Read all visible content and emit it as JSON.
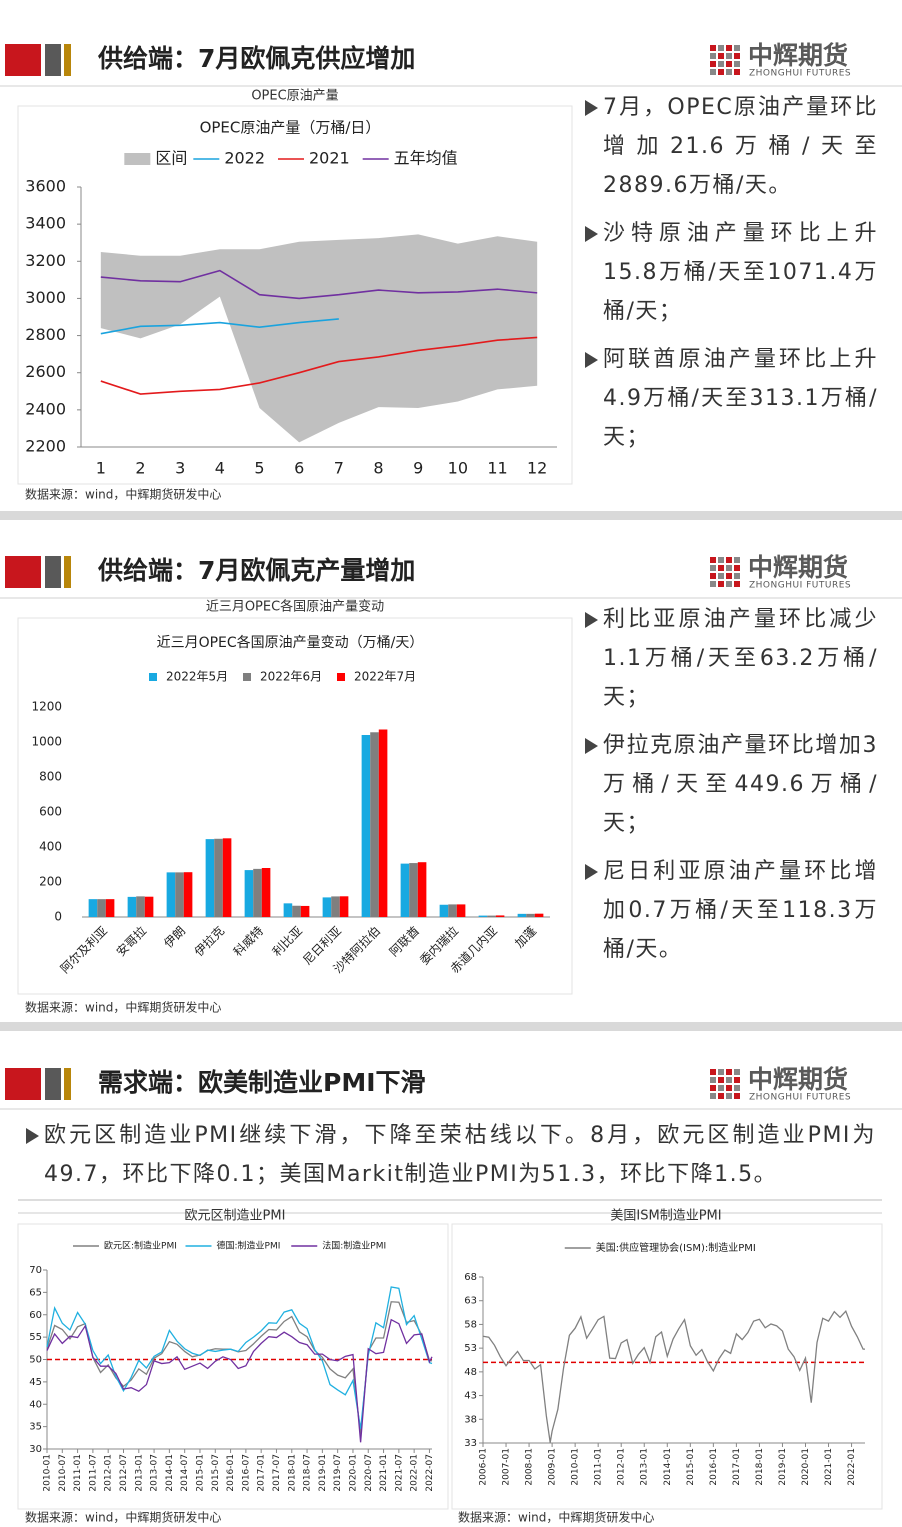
{
  "logo": {
    "name": "中辉期货",
    "name_en": "ZHONGHUI FUTURES"
  },
  "slides": [
    {
      "title": "供给端：7月欧佩克供应增加",
      "bullets": [
        "7月，OPEC原油产量环比增加21.6万桶/天至2889.6万桶/天。",
        "沙特原油产量环比上升15.8万桶/天至1071.4万桶/天；",
        "阿联酋原油产量环比上升4.9万桶/天至313.1万桶/天；"
      ]
    },
    {
      "title": "供给端：7月欧佩克产量增加",
      "bullets": [
        "利比亚原油产量环比减少1.1万桶/天至63.2万桶/天；",
        "伊拉克原油产量环比增加3万桶/天至449.6万桶/天；",
        "尼日利亚原油产量环比增加0.7万桶/天至118.3万桶/天。"
      ]
    },
    {
      "title": "需求端：欧美制造业PMI下滑",
      "bullets": [
        "欧元区制造业PMI继续下滑，下降至荣枯线以下。8月，欧元区制造业PMI为49.7，环比下降0.1；美国Markit制造业PMI为51.3，环比下降1.5。"
      ]
    }
  ],
  "chart_data": [
    {
      "type": "line",
      "caption": "OPEC原油产量",
      "title": "OPEC原油产量（万桶/日）",
      "source": "数据来源：wind，中辉期货研发中心",
      "categories": [
        "1",
        "2",
        "3",
        "4",
        "5",
        "6",
        "7",
        "8",
        "9",
        "10",
        "11",
        "12"
      ],
      "series": [
        {
          "name": "区间",
          "color": "#c0c0c0",
          "high": [
            3250,
            3230,
            3230,
            3265,
            3265,
            3305,
            3315,
            3325,
            3345,
            3295,
            3335,
            3305
          ],
          "low": [
            2840,
            2785,
            2860,
            3010,
            2410,
            2225,
            2330,
            2415,
            2410,
            2445,
            2510,
            2530
          ]
        },
        {
          "name": "2022",
          "color": "#1aa3de",
          "values": [
            2810,
            2850,
            2855,
            2870,
            2845,
            2870,
            2889.6,
            null,
            null,
            null,
            null,
            null
          ]
        },
        {
          "name": "2021",
          "color": "#e31a1c",
          "values": [
            2555,
            2485,
            2500,
            2510,
            2545,
            2600,
            2660,
            2685,
            2720,
            2745,
            2775,
            2790
          ]
        },
        {
          "name": "五年均值",
          "color": "#7030a0",
          "values": [
            3115,
            3095,
            3090,
            3150,
            3020,
            3000,
            3020,
            3045,
            3030,
            3035,
            3050,
            3030
          ]
        }
      ],
      "ylim": [
        2200,
        3600
      ],
      "yticks": [
        2200,
        2400,
        2600,
        2800,
        3000,
        3200,
        3400,
        3600
      ],
      "grid": false
    },
    {
      "type": "bar",
      "caption": "近三月OPEC各国原油产量变动",
      "title": "近三月OPEC各国原油产量变动（万桶/天）",
      "source": "数据来源：wind，中辉期货研发中心",
      "categories": [
        "阿尔及利亚",
        "安哥拉",
        "伊朗",
        "伊拉克",
        "科威特",
        "利比亚",
        "尼日利亚",
        "沙特阿拉伯",
        "阿联酋",
        "委内瑞拉",
        "赤道几内亚",
        "加蓬"
      ],
      "series": [
        {
          "name": "2022年5月",
          "color": "#18a9e1",
          "values": [
            102,
            115,
            255,
            445,
            268,
            78,
            112,
            1040,
            305,
            70,
            8,
            18
          ]
        },
        {
          "name": "2022年6月",
          "color": "#7f7f7f",
          "values": [
            102,
            118,
            255,
            447,
            275,
            64.3,
            117.6,
            1055.6,
            308.2,
            72,
            8,
            18
          ]
        },
        {
          "name": "2022年7月",
          "color": "#ff0000",
          "values": [
            102,
            116,
            256,
            449.6,
            280,
            63.2,
            118.3,
            1071.4,
            313.1,
            72,
            9,
            19
          ]
        }
      ],
      "ylim": [
        0,
        1200
      ],
      "yticks": [
        0,
        200,
        400,
        600,
        800,
        1000,
        1200
      ],
      "grid": false
    },
    {
      "type": "line",
      "caption": "欧元区制造业PMI",
      "source": "数据来源：wind，中辉期货研发中心",
      "x": [
        "2010-01",
        "2010-04",
        "2010-07",
        "2010-10",
        "2011-01",
        "2011-04",
        "2011-07",
        "2011-10",
        "2012-01",
        "2012-04",
        "2012-07",
        "2012-10",
        "2013-01",
        "2013-04",
        "2013-07",
        "2013-10",
        "2014-01",
        "2014-04",
        "2014-07",
        "2014-10",
        "2015-01",
        "2015-04",
        "2015-07",
        "2015-10",
        "2016-01",
        "2016-04",
        "2016-07",
        "2016-10",
        "2017-01",
        "2017-04",
        "2017-07",
        "2017-10",
        "2018-01",
        "2018-04",
        "2018-07",
        "2018-10",
        "2019-01",
        "2019-04",
        "2019-07",
        "2019-10",
        "2020-01",
        "2020-04",
        "2020-07",
        "2020-10",
        "2021-01",
        "2021-04",
        "2021-07",
        "2021-10",
        "2022-01",
        "2022-04",
        "2022-07",
        "2022-08"
      ],
      "series": [
        {
          "name": "欧元区:制造业PMI",
          "color": "#808080",
          "values": [
            52.4,
            57.6,
            56.7,
            54.6,
            57.3,
            58.0,
            50.4,
            47.1,
            48.8,
            45.9,
            44.0,
            45.4,
            47.9,
            46.7,
            50.3,
            51.3,
            54.0,
            53.4,
            51.8,
            50.6,
            51.0,
            52.0,
            52.4,
            52.3,
            52.3,
            51.7,
            52.0,
            53.5,
            55.2,
            56.7,
            56.6,
            58.5,
            59.6,
            56.2,
            55.1,
            52.0,
            50.5,
            47.9,
            46.5,
            45.9,
            47.9,
            33.4,
            51.8,
            54.8,
            54.8,
            62.9,
            62.8,
            58.3,
            58.7,
            55.5,
            49.8,
            49.7
          ]
        },
        {
          "name": "德国:制造业PMI",
          "color": "#20b0e0",
          "values": [
            52.8,
            61.5,
            58.1,
            56.6,
            60.5,
            57.9,
            52.0,
            49.1,
            51.0,
            46.2,
            43.0,
            46.0,
            49.8,
            48.1,
            50.7,
            51.7,
            56.5,
            54.1,
            52.4,
            51.4,
            50.9,
            52.1,
            51.8,
            52.1,
            52.3,
            51.8,
            53.8,
            55.0,
            56.4,
            58.2,
            58.1,
            60.6,
            61.1,
            58.1,
            56.9,
            52.2,
            49.7,
            44.4,
            43.2,
            42.1,
            45.3,
            34.5,
            51.0,
            58.2,
            57.1,
            66.2,
            65.9,
            57.8,
            59.8,
            54.6,
            49.3,
            49.1
          ]
        },
        {
          "name": "法国:制造业PMI",
          "color": "#7030a0",
          "values": [
            52.0,
            55.7,
            53.6,
            55.2,
            54.9,
            57.5,
            50.5,
            48.5,
            48.5,
            46.9,
            43.4,
            43.7,
            42.9,
            44.4,
            49.7,
            49.1,
            49.3,
            50.6,
            47.8,
            48.5,
            49.2,
            48.0,
            49.6,
            50.6,
            50.0,
            48.0,
            48.6,
            51.8,
            53.6,
            55.1,
            54.9,
            56.1,
            55.1,
            53.8,
            53.3,
            51.2,
            51.2,
            50.0,
            49.7,
            50.7,
            51.1,
            31.5,
            52.4,
            51.3,
            51.6,
            58.9,
            58.0,
            53.6,
            55.5,
            55.7,
            49.5,
            50.6
          ]
        }
      ],
      "xlim": [
        "2010-01",
        "2022-08"
      ],
      "xticks": [
        "2010-01",
        "2010-07",
        "2011-01",
        "2011-07",
        "2012-01",
        "2012-07",
        "2013-01",
        "2013-07",
        "2014-01",
        "2014-07",
        "2015-01",
        "2015-07",
        "2016-01",
        "2016-07",
        "2017-01",
        "2017-07",
        "2018-01",
        "2018-07",
        "2019-01",
        "2019-07",
        "2020-01",
        "2020-07",
        "2021-01",
        "2021-07",
        "2022-01",
        "2022-07"
      ],
      "ylim": [
        30,
        70
      ],
      "yticks": [
        30,
        35,
        40,
        45,
        50,
        55,
        60,
        65,
        70
      ],
      "grid": false,
      "reference_line": 50,
      "reference_color": "#e00000"
    },
    {
      "type": "line",
      "caption": "美国ISM制造业PMI",
      "source": "数据来源：wind，中辉期货研发中心",
      "x": [
        "2006-01",
        "2006-04",
        "2006-07",
        "2006-10",
        "2007-01",
        "2007-04",
        "2007-07",
        "2007-10",
        "2008-01",
        "2008-04",
        "2008-07",
        "2008-10",
        "2008-12",
        "2009-01",
        "2009-04",
        "2009-07",
        "2009-10",
        "2010-01",
        "2010-04",
        "2010-07",
        "2010-10",
        "2011-01",
        "2011-04",
        "2011-07",
        "2011-10",
        "2012-01",
        "2012-04",
        "2012-07",
        "2012-10",
        "2013-01",
        "2013-04",
        "2013-07",
        "2013-10",
        "2014-01",
        "2014-04",
        "2014-07",
        "2014-10",
        "2015-01",
        "2015-04",
        "2015-07",
        "2015-10",
        "2016-01",
        "2016-04",
        "2016-07",
        "2016-10",
        "2017-01",
        "2017-04",
        "2017-07",
        "2017-10",
        "2018-01",
        "2018-04",
        "2018-07",
        "2018-10",
        "2019-01",
        "2019-04",
        "2019-07",
        "2019-10",
        "2020-01",
        "2020-04",
        "2020-07",
        "2020-10",
        "2021-01",
        "2021-04",
        "2021-07",
        "2021-10",
        "2022-01",
        "2022-04",
        "2022-07",
        "2022-08"
      ],
      "series": [
        {
          "name": "美国:供应管理协会(ISM):制造业PMI",
          "color": "#808080",
          "values": [
            55.5,
            55.3,
            53.6,
            51.2,
            49.3,
            50.9,
            52.3,
            50.4,
            50.4,
            48.6,
            49.5,
            38.7,
            33.1,
            35.5,
            40.1,
            48.9,
            55.7,
            57.2,
            59.6,
            55.1,
            57.0,
            59.0,
            59.7,
            50.9,
            50.8,
            54.1,
            54.8,
            49.8,
            51.7,
            53.1,
            50.0,
            55.4,
            56.4,
            51.3,
            54.9,
            57.1,
            59.0,
            53.5,
            51.5,
            52.7,
            50.1,
            48.2,
            50.8,
            52.6,
            51.9,
            56.0,
            54.8,
            56.3,
            58.7,
            59.1,
            57.3,
            58.1,
            57.7,
            56.6,
            52.8,
            51.2,
            48.3,
            50.9,
            41.5,
            54.2,
            59.3,
            58.7,
            60.7,
            59.5,
            60.8,
            57.6,
            55.4,
            52.8,
            52.8
          ]
        }
      ],
      "xlim": [
        "2006-01",
        "2022-08"
      ],
      "xticks": [
        "2006-01",
        "2007-01",
        "2008-01",
        "2009-01",
        "2010-01",
        "2011-01",
        "2012-01",
        "2013-01",
        "2014-01",
        "2015-01",
        "2016-01",
        "2017-01",
        "2018-01",
        "2019-01",
        "2020-01",
        "2021-01",
        "2022-01"
      ],
      "ylim": [
        33,
        68
      ],
      "yticks": [
        33,
        38,
        43,
        48,
        53,
        58,
        63,
        68
      ],
      "grid": false,
      "reference_line": 50,
      "reference_color": "#e00000"
    }
  ]
}
